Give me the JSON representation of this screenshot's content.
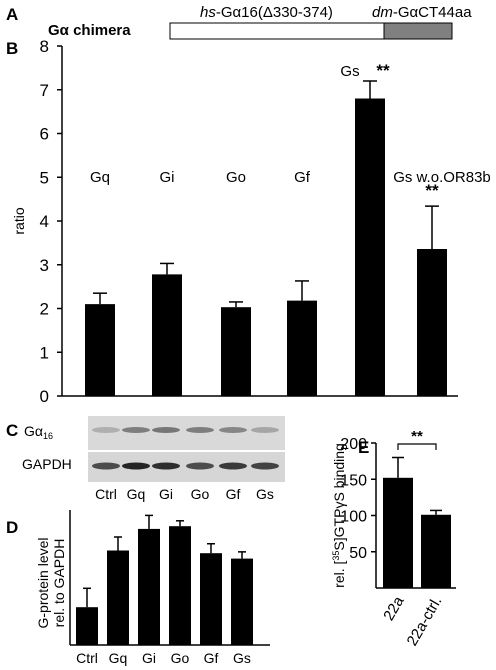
{
  "panel_labels": {
    "a": "A",
    "b": "B",
    "c": "C",
    "d": "D",
    "e": "E"
  },
  "panel_a": {
    "title_prefix": "G",
    "title_alpha": "α",
    "title_suffix": " chimera",
    "seg1_italic": "hs",
    "seg1_rest": "-Gα16(Δ330-374)",
    "seg2_italic": "dm",
    "seg2_rest": "-GαCT44aa"
  },
  "panel_c": {
    "row1_label_main": "Gα",
    "row1_label_sub": "16",
    "row2_label": "GAPDH",
    "lanes": [
      "Ctrl",
      "Gq",
      "Gi",
      "Go",
      "Gf",
      "Gs"
    ]
  },
  "chart_data": [
    {
      "id": "B",
      "type": "bar",
      "ylabel": "ratio",
      "ylim": [
        0,
        8
      ],
      "yticks": [
        0,
        1,
        2,
        3,
        4,
        5,
        6,
        7,
        8
      ],
      "categories": [
        "Gq",
        "Gi",
        "Go",
        "Gf",
        "Gs",
        "Gs w.o.OR83b"
      ],
      "values": [
        2.1,
        2.78,
        2.03,
        2.18,
        6.8,
        3.36
      ],
      "errors": [
        0.25,
        0.25,
        0.12,
        0.45,
        0.4,
        0.98
      ],
      "annotations": [
        "",
        "",
        "",
        "",
        "**",
        "**"
      ],
      "bar_color": "#000000"
    },
    {
      "id": "D",
      "type": "bar",
      "ylabel_line1": "G-protein level",
      "ylabel_line2": "rel. to GAPDH",
      "categories": [
        "Ctrl",
        "Gq",
        "Gi",
        "Go",
        "Gf",
        "Gs"
      ],
      "values": [
        0.28,
        0.7,
        0.86,
        0.88,
        0.68,
        0.64
      ],
      "errors": [
        0.14,
        0.1,
        0.1,
        0.04,
        0.07,
        0.05
      ],
      "ylim": [
        0,
        1
      ],
      "bar_color": "#000000"
    },
    {
      "id": "E",
      "type": "bar",
      "ylabel_prefix": "rel. [",
      "ylabel_sup": "35",
      "ylabel_suffix": "S]GTPγS binding",
      "ylim": [
        0,
        200
      ],
      "yticks": [
        50,
        100,
        150,
        200
      ],
      "categories": [
        "22a",
        "22a-ctrl."
      ],
      "values": [
        152,
        101
      ],
      "errors": [
        28,
        6
      ],
      "significance": "**",
      "bar_color": "#000000"
    }
  ]
}
